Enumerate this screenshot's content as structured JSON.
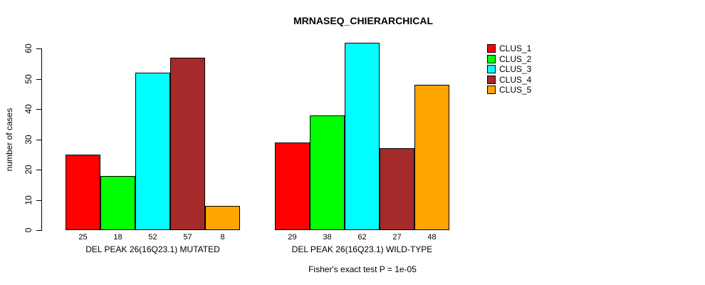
{
  "figure": {
    "title": "MRNASEQ_CHIERARCHICAL",
    "ylabel": "number of cases",
    "footer": "Fisher's exact test P = 1e-05"
  },
  "legend": {
    "items": [
      {
        "label": "CLUS_1",
        "color": "#FF0000"
      },
      {
        "label": "CLUS_2",
        "color": "#00FF00"
      },
      {
        "label": "CLUS_3",
        "color": "#00FFFF"
      },
      {
        "label": "CLUS_4",
        "color": "#A52A2A"
      },
      {
        "label": "CLUS_5",
        "color": "#FFA500"
      }
    ]
  },
  "chart_data": {
    "type": "bar",
    "title": "MRNASEQ_CHIERARCHICAL",
    "xlabel": "",
    "ylabel": "number of cases",
    "ylim": [
      0,
      60
    ],
    "yticks": [
      0,
      10,
      20,
      30,
      40,
      50,
      60
    ],
    "grid": false,
    "legend_position": "right",
    "categories": [
      "DEL PEAK 26(16Q23.1) MUTATED",
      "DEL PEAK 26(16Q23.1) WILD-TYPE"
    ],
    "series": [
      {
        "name": "CLUS_1",
        "color": "#FF0000",
        "values": [
          25,
          29
        ]
      },
      {
        "name": "CLUS_2",
        "color": "#00FF00",
        "values": [
          18,
          38
        ]
      },
      {
        "name": "CLUS_3",
        "color": "#00FFFF",
        "values": [
          52,
          62
        ]
      },
      {
        "name": "CLUS_4",
        "color": "#A52A2A",
        "values": [
          57,
          27
        ]
      },
      {
        "name": "CLUS_5",
        "color": "#FFA500",
        "values": [
          8,
          48
        ]
      }
    ],
    "bar_value_labels": [
      [
        25,
        18,
        52,
        57,
        8
      ],
      [
        29,
        38,
        62,
        27,
        48
      ]
    ],
    "annotation": "Fisher's exact test P = 1e-05"
  }
}
